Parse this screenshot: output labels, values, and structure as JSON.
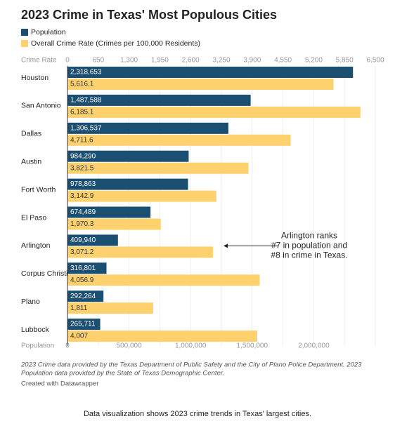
{
  "chart_data": {
    "type": "bar",
    "title": "2023 Crime in Texas' Most Populous Cities",
    "categories": [
      "Houston",
      "San Antonio",
      "Dallas",
      "Austin",
      "Fort Worth",
      "El Paso",
      "Arlington",
      "Corpus Christi",
      "Plano",
      "Lubbock"
    ],
    "series": [
      {
        "name": "Population",
        "color": "#1b4f72",
        "axis": "x",
        "values": [
          2318653,
          1487588,
          1306537,
          984290,
          978863,
          674489,
          409940,
          316801,
          292264,
          265711
        ],
        "value_labels": [
          "2,318,653",
          "1,487,588",
          "1,306,537",
          "984,290",
          "978,863",
          "674,489",
          "409,940",
          "316,801",
          "292,264",
          "265,711"
        ]
      },
      {
        "name": "Overall Crime Rate (Crimes per 100,000 Residents)",
        "color": "#fdd26e",
        "axis": "x2",
        "values": [
          5616.1,
          6185.1,
          4711.6,
          3821.5,
          3142.9,
          1970.3,
          3071.2,
          4056.9,
          1811,
          4007
        ],
        "value_labels": [
          "5,616.1",
          "6,185.1",
          "4,711.6",
          "3,821.5",
          "3,142.9",
          "1,970.3",
          "3,071.2",
          "4,056.9",
          "1,811",
          "4,007"
        ]
      }
    ],
    "xlabel": "Population",
    "xlim": [
      0,
      2500000
    ],
    "xticks": [
      0,
      {
        "value": 500000,
        "label": "500,000"
      },
      {
        "value": 1000000,
        "label": "1,000,000"
      },
      {
        "value": 1500000,
        "label": "1,500,000"
      },
      {
        "value": 2000000,
        "label": "2,000,000"
      }
    ],
    "x2label": "Crime Rate",
    "x2lim": [
      0,
      6500
    ],
    "x2ticks": [
      0,
      650,
      {
        "value": 1300,
        "label": "1,300"
      },
      {
        "value": 1950,
        "label": "1,950"
      },
      {
        "value": 2600,
        "label": "2,600"
      },
      {
        "value": 3250,
        "label": "3,250"
      },
      {
        "value": 3900,
        "label": "3,900"
      },
      {
        "value": 4550,
        "label": "4,550"
      },
      {
        "value": 5200,
        "label": "5,200"
      },
      {
        "value": 5850,
        "label": "5,850"
      },
      {
        "value": 6500,
        "label": "6,500"
      }
    ],
    "grid": true,
    "annotation": {
      "category": "Arlington",
      "lines": [
        "Arlington ranks",
        "#7 in population and",
        "#8 in crime in Texas."
      ]
    },
    "notes": [
      "2023 Crime data provided by the Texas Department of Public Safety and the City of Plano Police Department. 2023",
      "Population data provided by the State of Texas Demographic Center."
    ],
    "credit": "Created with Datawrapper",
    "caption": "Data visualization shows 2023 crime trends in Texas' largest cities."
  }
}
